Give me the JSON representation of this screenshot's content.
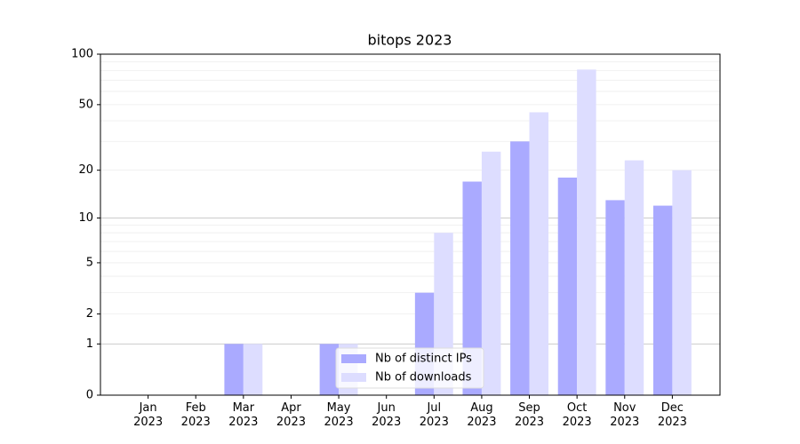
{
  "chart_data": {
    "type": "bar",
    "title": "bitops 2023",
    "categories": [
      "Jan 2023",
      "Feb 2023",
      "Mar 2023",
      "Apr 2023",
      "May 2023",
      "Jun 2023",
      "Jul 2023",
      "Aug 2023",
      "Sep 2023",
      "Oct 2023",
      "Nov 2023",
      "Dec 2023"
    ],
    "series": [
      {
        "name": "Nb of distinct IPs",
        "color": "#aaaaff",
        "values": [
          0,
          0,
          1,
          0,
          1,
          0,
          3,
          17,
          30,
          18,
          13,
          12
        ]
      },
      {
        "name": "Nb of downloads",
        "color": "#ddddff",
        "values": [
          0,
          0,
          1,
          0,
          1,
          0,
          8,
          26,
          45,
          81,
          23,
          20
        ]
      }
    ],
    "yscale": "log1p",
    "ylim": [
      0,
      100
    ],
    "yticks": [
      0,
      1,
      2,
      5,
      10,
      20,
      50,
      100
    ],
    "grid_lines": [
      1,
      10
    ],
    "minor_grid_lines": [
      2,
      3,
      4,
      5,
      6,
      7,
      8,
      9,
      20,
      30,
      40,
      50,
      60,
      70,
      80,
      90
    ],
    "legend": "lower center"
  }
}
